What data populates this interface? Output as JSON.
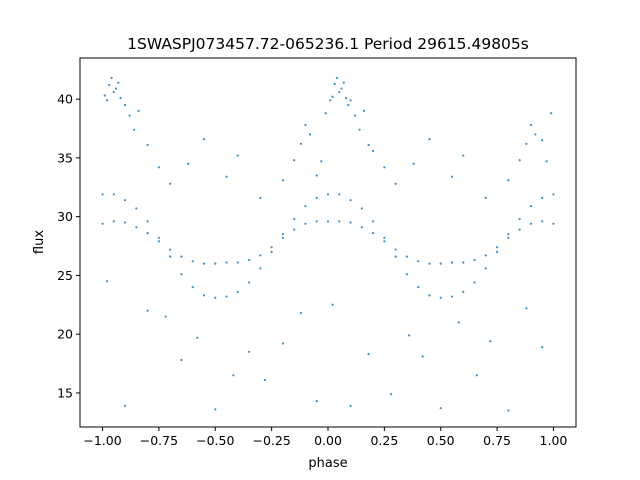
{
  "chart_data": {
    "type": "scatter",
    "title": "1SWASPJ073457.72-065236.1 Period 29615.49805s",
    "xlabel": "phase",
    "ylabel": "flux",
    "xlim": [
      -1.1,
      1.1
    ],
    "ylim": [
      12.1,
      43.5
    ],
    "xticks": [
      -1.0,
      -0.75,
      -0.5,
      -0.25,
      0.0,
      0.25,
      0.5,
      0.75,
      1.0
    ],
    "xtick_labels": [
      "−1.00",
      "−0.75",
      "−0.50",
      "−0.25",
      "0.00",
      "0.25",
      "0.50",
      "0.75",
      "1.00"
    ],
    "yticks": [
      15,
      20,
      25,
      30,
      35,
      40
    ],
    "ytick_labels": [
      "15",
      "20",
      "25",
      "30",
      "35",
      "40"
    ],
    "grid": false,
    "marker_color": "#1f77b4",
    "series": [
      {
        "x": [
          -1.0,
          -0.95,
          -0.9,
          -0.85,
          -0.8,
          -0.75,
          -0.7,
          -0.65,
          -0.6,
          -0.55,
          -0.5,
          -0.45,
          -0.4,
          -0.35,
          -0.3,
          -0.25,
          -0.2,
          -0.15,
          -0.1,
          -0.05,
          0.0,
          0.05,
          0.1,
          0.15,
          0.2,
          0.25,
          0.3,
          0.35,
          0.4,
          0.45,
          0.5,
          0.55,
          0.6,
          0.65,
          0.7,
          0.75,
          0.8,
          0.85,
          0.9,
          0.95,
          1.0
        ],
        "y": [
          31.9,
          31.9,
          31.4,
          30.7,
          29.6,
          28.2,
          26.6,
          25.1,
          24.0,
          23.3,
          23.1,
          23.2,
          23.6,
          24.4,
          25.6,
          27.0,
          28.5,
          29.8,
          30.9,
          31.6,
          31.9,
          31.9,
          31.4,
          30.7,
          29.6,
          28.2,
          26.6,
          25.1,
          24.0,
          23.3,
          23.1,
          23.2,
          23.6,
          24.4,
          25.6,
          27.0,
          28.5,
          29.8,
          30.9,
          31.6,
          31.9
        ]
      },
      {
        "x": [
          -1.0,
          -0.95,
          -0.9,
          -0.85,
          -0.8,
          -0.75,
          -0.7,
          -0.65,
          -0.6,
          -0.55,
          -0.5,
          -0.45,
          -0.4,
          -0.35,
          -0.3,
          -0.25,
          -0.2,
          -0.15,
          -0.1,
          -0.05,
          0.0,
          0.05,
          0.1,
          0.15,
          0.2,
          0.25,
          0.3,
          0.35,
          0.4,
          0.45,
          0.5,
          0.55,
          0.6,
          0.65,
          0.7,
          0.75,
          0.8,
          0.85,
          0.9,
          0.95,
          1.0
        ],
        "y": [
          29.4,
          29.6,
          29.5,
          29.1,
          28.6,
          27.9,
          27.2,
          26.6,
          26.2,
          26.0,
          26.0,
          26.1,
          26.1,
          26.3,
          26.7,
          27.4,
          28.2,
          28.9,
          29.4,
          29.6,
          29.6,
          29.6,
          29.5,
          29.1,
          28.6,
          27.9,
          27.2,
          26.6,
          26.2,
          26.0,
          26.0,
          26.1,
          26.1,
          26.3,
          26.7,
          27.4,
          28.2,
          28.9,
          29.4,
          29.6,
          29.4
        ]
      },
      {
        "x": [
          -0.99,
          -0.98,
          -0.97,
          -0.96,
          -0.95,
          -0.94,
          -0.93,
          -0.92,
          -0.9,
          -0.88,
          -0.86,
          -0.84,
          -0.8,
          -0.75,
          -0.7,
          -0.62,
          -0.55,
          -0.45,
          -0.4,
          -0.3,
          -0.2,
          -0.15,
          -0.12,
          -0.1,
          -0.08,
          -0.05,
          -0.03,
          -0.01,
          0.01,
          0.02,
          0.03,
          0.04,
          0.05,
          0.06,
          0.07,
          0.08,
          0.09,
          0.1,
          0.12,
          0.14,
          0.16,
          0.18,
          0.2,
          0.25,
          0.3,
          0.38,
          0.45,
          0.55,
          0.6,
          0.7,
          0.8,
          0.85,
          0.88,
          0.9,
          0.92,
          0.95,
          0.97,
          0.99
        ],
        "y": [
          40.3,
          39.9,
          41.2,
          41.8,
          40.6,
          40.9,
          41.4,
          40.1,
          39.5,
          38.6,
          37.4,
          39.0,
          36.1,
          34.2,
          32.8,
          34.5,
          36.6,
          33.4,
          35.2,
          31.6,
          33.1,
          34.8,
          36.2,
          37.8,
          37.0,
          33.5,
          34.7,
          38.8,
          39.9,
          40.2,
          41.3,
          41.8,
          40.6,
          40.9,
          41.4,
          40.1,
          39.5,
          39.9,
          38.6,
          37.4,
          39.0,
          36.1,
          35.6,
          34.2,
          32.8,
          34.5,
          36.6,
          33.4,
          35.2,
          31.6,
          33.1,
          34.8,
          36.2,
          37.8,
          37.0,
          36.5,
          34.7,
          38.8
        ]
      },
      {
        "x": [
          -0.98,
          -0.9,
          -0.8,
          -0.72,
          -0.65,
          -0.58,
          -0.5,
          -0.42,
          -0.35,
          -0.28,
          -0.2,
          -0.12,
          -0.05,
          0.02,
          0.1,
          0.18,
          0.28,
          0.36,
          0.42,
          0.5,
          0.58,
          0.66,
          0.72,
          0.8,
          0.88,
          0.95
        ],
        "y": [
          24.5,
          13.9,
          22.0,
          21.5,
          17.8,
          19.7,
          13.6,
          16.5,
          18.5,
          16.1,
          19.2,
          21.8,
          14.3,
          22.5,
          13.9,
          18.3,
          14.9,
          19.9,
          18.1,
          13.7,
          21.0,
          16.5,
          19.4,
          13.5,
          22.2,
          18.9
        ]
      }
    ]
  }
}
